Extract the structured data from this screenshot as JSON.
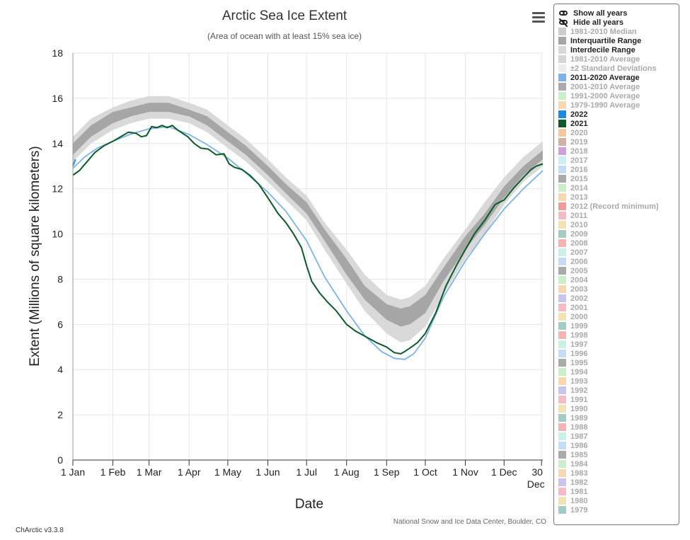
{
  "menu_icon": "hamburger-menu-icon",
  "legend": {
    "show_all": "Show all years",
    "hide_all": "Hide all years",
    "show_icon": "eye-icon",
    "hide_icon": "eye-slash-icon",
    "items": [
      {
        "label": "1981-2010 Median",
        "color": "#cccccc",
        "active": false
      },
      {
        "label": "Interquartile Range",
        "color": "#a6a6a6",
        "active": true
      },
      {
        "label": "Interdecile Range",
        "color": "#d9d9d9",
        "active": true
      },
      {
        "label": "1981-2010 Average",
        "color": "#d5d5d5",
        "active": false
      },
      {
        "label": "±2 Standard Deviations",
        "color": "#ececec",
        "active": false
      },
      {
        "label": "2011-2020 Average",
        "color": "#7db3e8",
        "active": true
      },
      {
        "label": "2001-2010 Average",
        "color": "#aaaaaa",
        "active": false
      },
      {
        "label": "1991-2000 Average",
        "color": "#c9f0c9",
        "active": false
      },
      {
        "label": "1979-1990 Average",
        "color": "#f9d8b0",
        "active": false
      },
      {
        "label": "2022",
        "color": "#1a8be0",
        "active": true
      },
      {
        "label": "2021",
        "color": "#0b5a2a",
        "active": true
      },
      {
        "label": "2020",
        "color": "#f6c79b",
        "active": false
      },
      {
        "label": "2019",
        "color": "#d4b0a3",
        "active": false
      },
      {
        "label": "2018",
        "color": "#d1a0dc",
        "active": false
      },
      {
        "label": "2017",
        "color": "#c8f1f1",
        "active": false
      },
      {
        "label": "2016",
        "color": "#c4dcf5",
        "active": false
      },
      {
        "label": "2015",
        "color": "#aaaaaa",
        "active": false
      },
      {
        "label": "2014",
        "color": "#c9f0c9",
        "active": false
      },
      {
        "label": "2013",
        "color": "#f9d8b0",
        "active": false
      },
      {
        "label": "2012 (Record minimum)",
        "color": "#f19a9a",
        "active": false
      },
      {
        "label": "2011",
        "color": "#f6bcc6",
        "active": false
      },
      {
        "label": "2010",
        "color": "#f3e3b0",
        "active": false
      },
      {
        "label": "2009",
        "color": "#a3ccc4",
        "active": false
      },
      {
        "label": "2008",
        "color": "#f5b3b3",
        "active": false
      },
      {
        "label": "2007",
        "color": "#c8f1e8",
        "active": false
      },
      {
        "label": "2006",
        "color": "#c4dcf5",
        "active": false
      },
      {
        "label": "2005",
        "color": "#aaaaaa",
        "active": false
      },
      {
        "label": "2004",
        "color": "#c9f0c9",
        "active": false
      },
      {
        "label": "2003",
        "color": "#f9d8b0",
        "active": false
      },
      {
        "label": "2002",
        "color": "#c9c3f0",
        "active": false
      },
      {
        "label": "2001",
        "color": "#f6bcc6",
        "active": false
      },
      {
        "label": "2000",
        "color": "#f3e3b0",
        "active": false
      },
      {
        "label": "1999",
        "color": "#a3ccc4",
        "active": false
      },
      {
        "label": "1998",
        "color": "#f5b3b3",
        "active": false
      },
      {
        "label": "1997",
        "color": "#c8f1e8",
        "active": false
      },
      {
        "label": "1996",
        "color": "#c4dcf5",
        "active": false
      },
      {
        "label": "1995",
        "color": "#aaaaaa",
        "active": false
      },
      {
        "label": "1994",
        "color": "#c9f0c9",
        "active": false
      },
      {
        "label": "1993",
        "color": "#f9d8b0",
        "active": false
      },
      {
        "label": "1992",
        "color": "#c9c3f0",
        "active": false
      },
      {
        "label": "1991",
        "color": "#f6bcc6",
        "active": false
      },
      {
        "label": "1990",
        "color": "#f3e3b0",
        "active": false
      },
      {
        "label": "1989",
        "color": "#a3ccc4",
        "active": false
      },
      {
        "label": "1988",
        "color": "#f5b3b3",
        "active": false
      },
      {
        "label": "1987",
        "color": "#c8f1e8",
        "active": false
      },
      {
        "label": "1986",
        "color": "#c4dcf5",
        "active": false
      },
      {
        "label": "1985",
        "color": "#aaaaaa",
        "active": false
      },
      {
        "label": "1984",
        "color": "#c9f0c9",
        "active": false
      },
      {
        "label": "1983",
        "color": "#f9d8b0",
        "active": false
      },
      {
        "label": "1982",
        "color": "#c9c3f0",
        "active": false
      },
      {
        "label": "1981",
        "color": "#f6bcc6",
        "active": false
      },
      {
        "label": "1980",
        "color": "#f3e3b0",
        "active": false
      },
      {
        "label": "1979",
        "color": "#a3ccc4",
        "active": false
      }
    ]
  },
  "credit": "National Snow and Ice Data Center, Boulder, CO",
  "version": "ChArctic v3.3.8",
  "chart_data": {
    "type": "line",
    "title": "Arctic Sea Ice Extent",
    "subtitle": "(Area of ocean with at least 15% sea ice)",
    "xlabel": "Date",
    "ylabel": "Extent (Millions of square kilometers)",
    "xlim": [
      1,
      365
    ],
    "ylim": [
      0,
      18
    ],
    "y_ticks": [
      0,
      2,
      4,
      6,
      8,
      10,
      12,
      14,
      16,
      18
    ],
    "x_ticks": [
      {
        "label": "1 Jan",
        "day": 1
      },
      {
        "label": "1 Feb",
        "day": 32
      },
      {
        "label": "1 Mar",
        "day": 60
      },
      {
        "label": "1 Apr",
        "day": 91
      },
      {
        "label": "1 May",
        "day": 121
      },
      {
        "label": "1 Jun",
        "day": 152
      },
      {
        "label": "1 Jul",
        "day": 182
      },
      {
        "label": "1 Aug",
        "day": 213
      },
      {
        "label": "1 Sep",
        "day": 244
      },
      {
        "label": "1 Oct",
        "day": 274
      },
      {
        "label": "1 Nov",
        "day": 305
      },
      {
        "label": "1 Dec",
        "day": 335
      },
      {
        "label": "30 Dec",
        "day": 364
      }
    ],
    "grid": true,
    "legend_position": "right",
    "bands": [
      {
        "name": "Interdecile Range",
        "color": "#d9d9d9",
        "x": [
          1,
          15,
          32,
          46,
          60,
          75,
          91,
          105,
          121,
          135,
          152,
          166,
          182,
          196,
          213,
          227,
          244,
          255,
          262,
          274,
          288,
          305,
          320,
          335,
          350,
          365
        ],
        "lower": [
          13.2,
          14.0,
          14.6,
          14.9,
          15.1,
          15.1,
          14.9,
          14.5,
          13.8,
          13.2,
          12.3,
          11.5,
          10.6,
          9.3,
          7.8,
          6.6,
          5.6,
          5.2,
          5.3,
          5.9,
          7.3,
          8.9,
          10.0,
          11.3,
          12.3,
          13.0
        ],
        "upper": [
          14.3,
          15.1,
          15.6,
          15.9,
          16.1,
          16.1,
          15.8,
          15.5,
          14.8,
          14.2,
          13.3,
          12.5,
          11.7,
          10.5,
          9.3,
          8.2,
          7.3,
          7.1,
          7.2,
          7.7,
          8.9,
          10.2,
          11.4,
          12.5,
          13.4,
          14.1
        ]
      },
      {
        "name": "Interquartile Range",
        "color": "#a6a6a6",
        "x": [
          1,
          15,
          32,
          46,
          60,
          75,
          91,
          105,
          121,
          135,
          152,
          166,
          182,
          196,
          213,
          227,
          244,
          255,
          262,
          274,
          288,
          305,
          320,
          335,
          350,
          365
        ],
        "lower": [
          13.5,
          14.3,
          14.9,
          15.2,
          15.4,
          15.4,
          15.2,
          14.8,
          14.1,
          13.5,
          12.6,
          11.8,
          10.9,
          9.7,
          8.2,
          7.1,
          6.2,
          5.9,
          6.0,
          6.5,
          7.9,
          9.3,
          10.4,
          11.6,
          12.6,
          13.3
        ],
        "upper": [
          14.0,
          14.8,
          15.4,
          15.6,
          15.8,
          15.8,
          15.5,
          15.2,
          14.5,
          13.9,
          13.0,
          12.2,
          11.4,
          10.2,
          8.9,
          7.7,
          6.9,
          6.7,
          6.8,
          7.3,
          8.5,
          9.9,
          10.9,
          12.1,
          13.0,
          13.7
        ]
      }
    ],
    "series": [
      {
        "name": "2011-2020 Average",
        "color": "#7db3e8",
        "x": [
          1,
          10,
          20,
          32,
          45,
          60,
          75,
          91,
          105,
          121,
          135,
          152,
          166,
          182,
          196,
          213,
          227,
          240,
          250,
          258,
          265,
          274,
          288,
          305,
          320,
          335,
          350,
          365
        ],
        "y": [
          12.9,
          13.4,
          13.8,
          14.1,
          14.4,
          14.65,
          14.75,
          14.4,
          13.95,
          13.35,
          12.7,
          11.85,
          11.0,
          9.7,
          8.1,
          6.6,
          5.5,
          4.8,
          4.5,
          4.45,
          4.7,
          5.4,
          7.2,
          8.8,
          10.0,
          11.1,
          12.0,
          12.8
        ]
      },
      {
        "name": "2022",
        "color": "#1a8be0",
        "x": [
          1,
          3
        ],
        "y": [
          13.0,
          13.3
        ]
      },
      {
        "name": "2021",
        "color": "#0b5a2a",
        "x": [
          1,
          6,
          12,
          18,
          25,
          32,
          38,
          44,
          50,
          54,
          58,
          62,
          66,
          70,
          74,
          78,
          82,
          86,
          90,
          95,
          100,
          106,
          112,
          118,
          122,
          126,
          132,
          138,
          145,
          152,
          160,
          166,
          172,
          178,
          182,
          186,
          192,
          198,
          205,
          213,
          220,
          228,
          236,
          244,
          250,
          255,
          258,
          262,
          268,
          274,
          282,
          290,
          298,
          305,
          312,
          320,
          328,
          335,
          342,
          350,
          356,
          360,
          365
        ],
        "y": [
          12.6,
          12.8,
          13.2,
          13.6,
          13.9,
          14.1,
          14.3,
          14.5,
          14.45,
          14.3,
          14.35,
          14.75,
          14.7,
          14.8,
          14.7,
          14.8,
          14.6,
          14.45,
          14.3,
          14.0,
          13.8,
          13.75,
          13.5,
          13.55,
          13.1,
          12.95,
          12.85,
          12.6,
          12.2,
          11.6,
          10.9,
          10.5,
          10.0,
          9.4,
          8.6,
          7.9,
          7.4,
          7.0,
          6.6,
          6.0,
          5.7,
          5.45,
          5.2,
          5.0,
          4.75,
          4.7,
          4.8,
          4.95,
          5.2,
          5.6,
          6.5,
          7.7,
          8.6,
          9.3,
          10.0,
          10.6,
          11.3,
          11.5,
          12.0,
          12.5,
          12.85,
          13.0,
          13.1
        ]
      }
    ]
  }
}
